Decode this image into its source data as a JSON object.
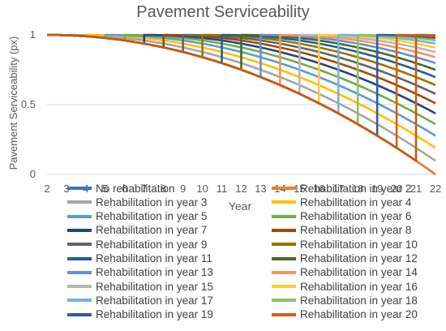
{
  "chart_data": {
    "type": "line",
    "title": "Pavement Serviceability",
    "xlabel": "Year",
    "ylabel": "Pavement Serviceability (px)",
    "xlim": [
      2,
      22
    ],
    "ylim": [
      0,
      1
    ],
    "x_ticks": [
      2,
      3,
      4,
      5,
      6,
      7,
      8,
      9,
      10,
      11,
      12,
      13,
      14,
      15,
      16,
      17,
      18,
      19,
      20,
      21,
      22
    ],
    "y_ticks": [
      0,
      0.5,
      1
    ],
    "y_tick_labels": [
      "0",
      "0.5",
      "1"
    ],
    "grid": "horizontal major gridlines",
    "legend_position": "bottom",
    "curve_model": "p(t) = 1 - ((t - 2) / 20)^2, reset to 1 at the rehabilitation year",
    "series": [
      {
        "name": "No rehabilitation",
        "rehab_year": null,
        "color": "#4472C4"
      },
      {
        "name": "Rehabilitation in year 2",
        "rehab_year": 2,
        "color": "#ED7D31"
      },
      {
        "name": "Rehabilitation in year 3",
        "rehab_year": 3,
        "color": "#A5A5A5"
      },
      {
        "name": "Rehabilitation in year 4",
        "rehab_year": 4,
        "color": "#FFC000"
      },
      {
        "name": "Rehabilitation in year 5",
        "rehab_year": 5,
        "color": "#5B9BD5"
      },
      {
        "name": "Rehabilitation in year 6",
        "rehab_year": 6,
        "color": "#70AD47"
      },
      {
        "name": "Rehabilitation in year 7",
        "rehab_year": 7,
        "color": "#264478"
      },
      {
        "name": "Rehabilitation in year 8",
        "rehab_year": 8,
        "color": "#9E480E"
      },
      {
        "name": "Rehabilitation in year 9",
        "rehab_year": 9,
        "color": "#636363"
      },
      {
        "name": "Rehabilitation in year 10",
        "rehab_year": 10,
        "color": "#997300"
      },
      {
        "name": "Rehabilitation in year 11",
        "rehab_year": 11,
        "color": "#255E91"
      },
      {
        "name": "Rehabilitation in year 12",
        "rehab_year": 12,
        "color": "#43682B"
      },
      {
        "name": "Rehabilitation in year 13",
        "rehab_year": 13,
        "color": "#698ED0"
      },
      {
        "name": "Rehabilitation in year 14",
        "rehab_year": 14,
        "color": "#F1975A"
      },
      {
        "name": "Rehabilitation in year 15",
        "rehab_year": 15,
        "color": "#B7B7B7"
      },
      {
        "name": "Rehabilitation in year 16",
        "rehab_year": 16,
        "color": "#FFCD33"
      },
      {
        "name": "Rehabilitation in year 17",
        "rehab_year": 17,
        "color": "#7CAFDD"
      },
      {
        "name": "Rehabilitation in year 18",
        "rehab_year": 18,
        "color": "#8CC168"
      },
      {
        "name": "Rehabilitation in year 19",
        "rehab_year": 19,
        "color": "#335AA1"
      },
      {
        "name": "Rehabilitation in year 20",
        "rehab_year": 20,
        "color": "#D26012"
      }
    ],
    "extra_lines_without_legend": [
      {
        "rehab_year": 21,
        "color": "#C55A11"
      }
    ]
  }
}
